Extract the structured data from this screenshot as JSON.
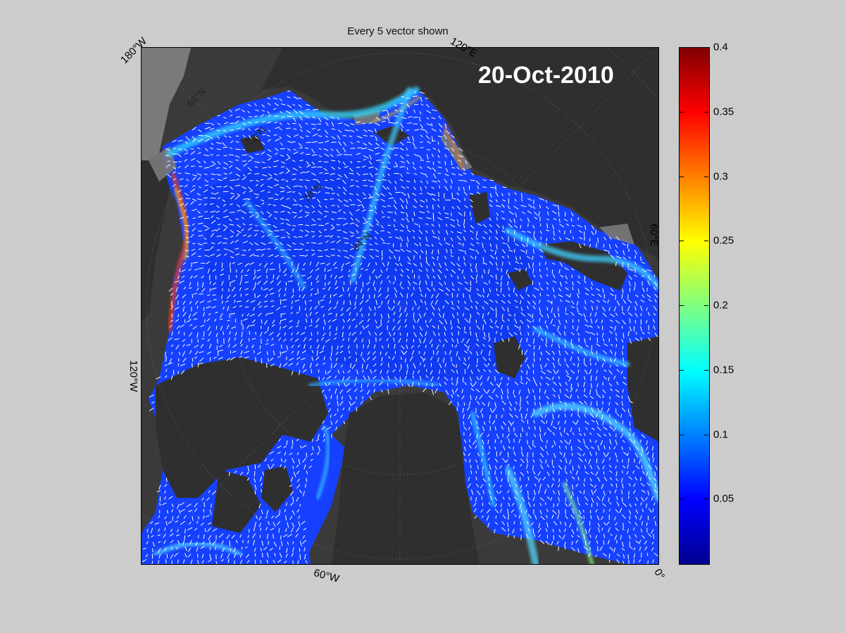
{
  "title": "Every 5 vector shown",
  "date": "20-Oct-2010",
  "lon_labels": {
    "top_left": "180°W",
    "top_right": "120°E",
    "right_mid": "60°E",
    "bottom_right": "0°",
    "left_mid": "120°W",
    "bottom_mid": "60°W"
  },
  "lat_labels": [
    "66°N",
    "72°N",
    "78°N",
    "84°N"
  ],
  "colorbar": {
    "min": 0,
    "max": 0.4,
    "ticks": [
      "0.4",
      "0.35",
      "0.3",
      "0.25",
      "0.2",
      "0.15",
      "0.1",
      "0.05"
    ],
    "tick_values": [
      0.4,
      0.35,
      0.3,
      0.25,
      0.2,
      0.15,
      0.1,
      0.05
    ],
    "colormap": "jet"
  },
  "colors": {
    "land": "#2f2f2f",
    "land_alt": "#7a7a7a",
    "ocean_base": "#0a3cff",
    "vector": "#ffffff"
  }
}
